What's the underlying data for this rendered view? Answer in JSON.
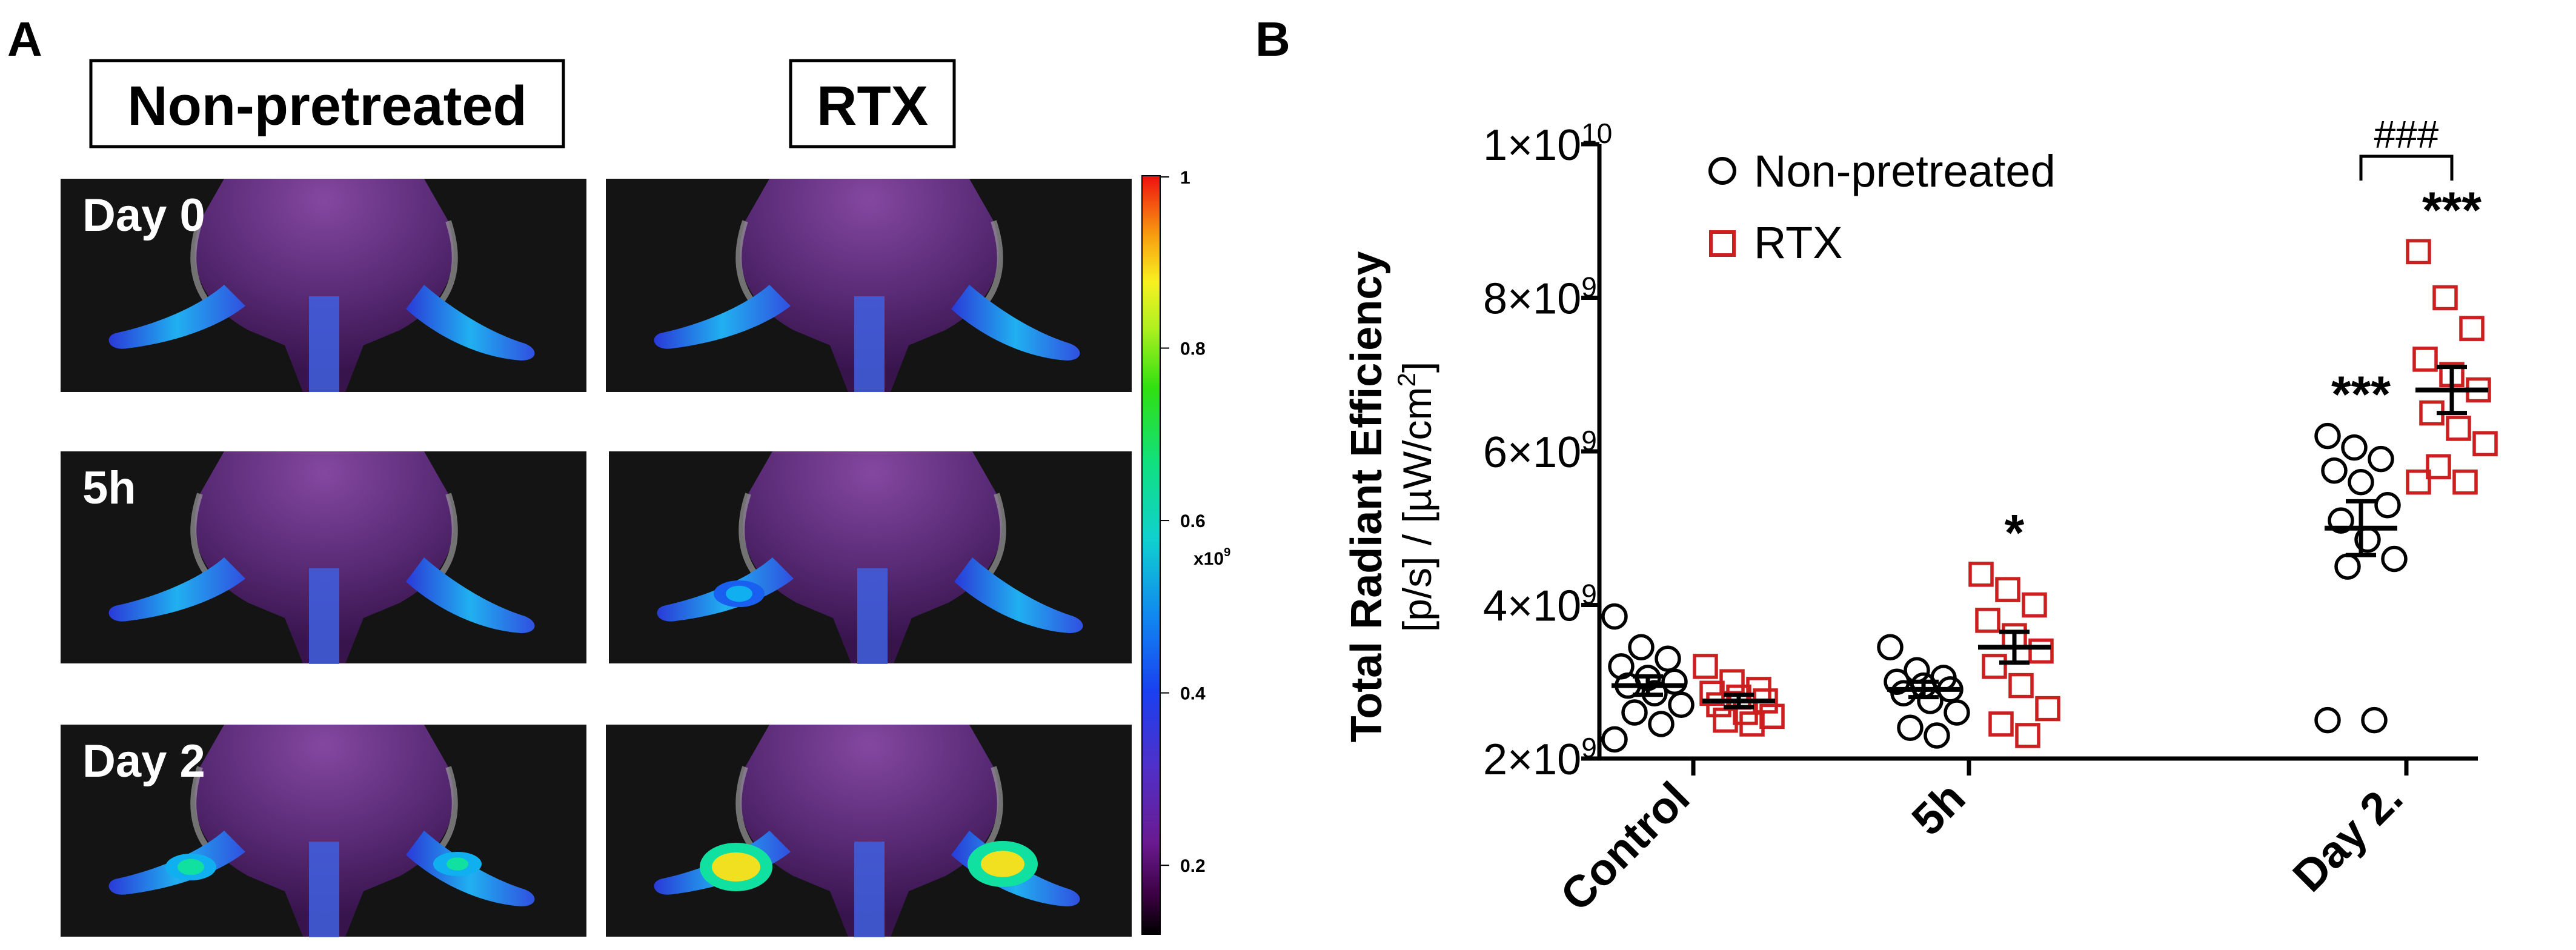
{
  "panel_a": {
    "letter": "A",
    "headers": [
      "Non-pretreated",
      "RTX"
    ],
    "rows": [
      {
        "label": "Day 0",
        "paw_intensity": [
          0.35,
          0.38
        ]
      },
      {
        "label": "5h",
        "paw_intensity": [
          0.36,
          0.55
        ]
      },
      {
        "label": "Day 2",
        "paw_intensity": [
          0.75,
          0.95
        ]
      }
    ],
    "colorbar": {
      "ticks": [
        "1",
        "0.8",
        "0.6",
        "0.4",
        "0.2"
      ],
      "tick_values": [
        1,
        0.8,
        0.6,
        0.4,
        0.2
      ],
      "min": 0.12,
      "max": 1.0,
      "unit": "x10",
      "unit_exp": "9"
    }
  },
  "panel_b": {
    "letter": "B"
  },
  "chart_data": {
    "type": "scatter",
    "title": "",
    "xlabel": "",
    "ylabel_line1": "Total Radiant Efficiency",
    "ylabel_line2": "[p/s] / [µW/cm",
    "ylabel_exp": "2",
    "ylabel_close": "]",
    "ylim": [
      2000000000,
      10000000000
    ],
    "yticks": [
      {
        "value": 2000000000,
        "mant": "2×10",
        "exp": "9"
      },
      {
        "value": 4000000000,
        "mant": "4×10",
        "exp": "9"
      },
      {
        "value": 6000000000,
        "mant": "6×10",
        "exp": "9"
      },
      {
        "value": 8000000000,
        "mant": "8×10",
        "exp": "9"
      },
      {
        "value": 10000000000,
        "mant": "1×10",
        "exp": "10"
      }
    ],
    "categories": [
      "Control",
      "5h",
      "Day 2."
    ],
    "legend": [
      "Non-pretreated",
      "RTX"
    ],
    "legend_position": "top-left",
    "series": [
      {
        "name": "Non-pretreated",
        "marker": "circle",
        "color": "#000000",
        "groups": [
          {
            "mean": 2950000000,
            "sem": 120000000,
            "points": [
              3850000000,
              3450000000,
              3300000000,
              3200000000,
              3050000000,
              3000000000,
              2950000000,
              2850000000,
              2700000000,
              2600000000,
              2450000000,
              2250000000
            ]
          },
          {
            "mean": 2900000000,
            "sem": 100000000,
            "points": [
              3450000000,
              3150000000,
              3050000000,
              3000000000,
              2950000000,
              2900000000,
              2850000000,
              2750000000,
              2600000000,
              2400000000,
              2300000000
            ]
          },
          {
            "mean": 5000000000,
            "sem": 350000000,
            "points": [
              6200000000,
              6050000000,
              5900000000,
              5750000000,
              5600000000,
              5300000000,
              5100000000,
              4850000000,
              4600000000,
              4500000000,
              2500000000,
              2500000000
            ]
          }
        ],
        "significance": [
          "",
          "",
          "***"
        ]
      },
      {
        "name": "RTX",
        "marker": "square",
        "color": "#cc1f1f",
        "groups": [
          {
            "mean": 2750000000,
            "sem": 80000000,
            "points": [
              3200000000,
              3000000000,
              2900000000,
              2850000000,
              2800000000,
              2750000000,
              2700000000,
              2600000000,
              2550000000,
              2500000000,
              2450000000
            ]
          },
          {
            "mean": 3450000000,
            "sem": 200000000,
            "points": [
              4400000000,
              4200000000,
              4000000000,
              3800000000,
              3600000000,
              3400000000,
              3200000000,
              2950000000,
              2650000000,
              2450000000,
              2300000000
            ]
          },
          {
            "mean": 6800000000,
            "sem": 300000000,
            "points": [
              8600000000,
              8000000000,
              7600000000,
              7200000000,
              7000000000,
              6800000000,
              6500000000,
              6300000000,
              6100000000,
              5800000000,
              5600000000,
              5600000000
            ]
          }
        ],
        "significance": [
          "",
          "*",
          "***"
        ]
      }
    ],
    "annotations": [
      {
        "text": "###",
        "between": [
          "Non-pretreated",
          "RTX"
        ],
        "category": "Day 2."
      }
    ]
  }
}
